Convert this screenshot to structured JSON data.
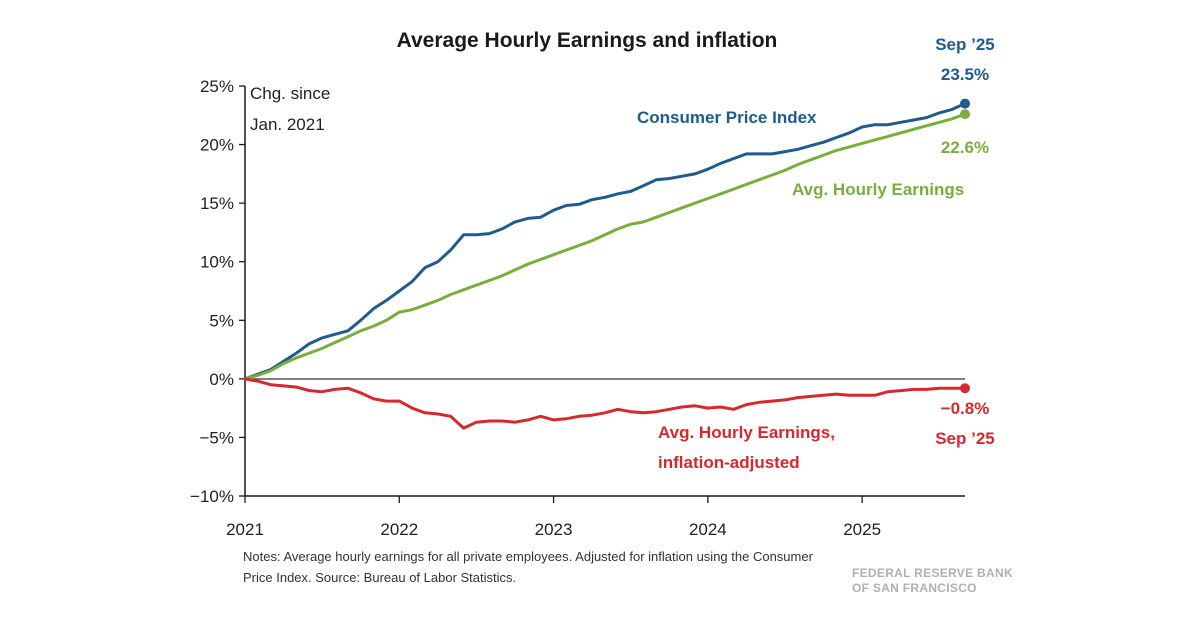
{
  "chart_data": {
    "type": "line",
    "title": "Average Hourly Earnings and inflation",
    "ylabel": "Chg. since Jan. 2021",
    "ylabel_lines": [
      "Chg. since",
      "Jan. 2021"
    ],
    "ylim": [
      -10,
      25
    ],
    "yticks": [
      {
        "value": 25,
        "label": "25%"
      },
      {
        "value": 20,
        "label": "20%"
      },
      {
        "value": 15,
        "label": "15%"
      },
      {
        "value": 10,
        "label": "10%"
      },
      {
        "value": 5,
        "label": "5%"
      },
      {
        "value": 0,
        "label": "0%"
      },
      {
        "value": -5,
        "label": "−5%"
      },
      {
        "value": -10,
        "label": "−10%"
      }
    ],
    "xlim": [
      2021.0,
      2025.6667
    ],
    "xticks": [
      {
        "value": 2021,
        "label": "2021"
      },
      {
        "value": 2022,
        "label": "2022"
      },
      {
        "value": 2023,
        "label": "2023"
      },
      {
        "value": 2024,
        "label": "2024"
      },
      {
        "value": 2025,
        "label": "2025"
      }
    ],
    "x_start_year": 2021,
    "x_step_months": 1,
    "series": [
      {
        "key": "cpi",
        "name": "Consumer Price Index",
        "color": "#1f5b8c",
        "values": [
          0,
          0.4,
          0.8,
          1.5,
          2.2,
          3.0,
          3.5,
          3.8,
          4.1,
          5.0,
          6.0,
          6.7,
          7.5,
          8.3,
          9.5,
          10.0,
          11.0,
          12.3,
          12.3,
          12.4,
          12.8,
          13.4,
          13.7,
          13.8,
          14.4,
          14.8,
          14.9,
          15.3,
          15.5,
          15.8,
          16.0,
          16.5,
          17.0,
          17.1,
          17.3,
          17.5,
          17.9,
          18.4,
          18.8,
          19.2,
          19.2,
          19.2,
          19.4,
          19.6,
          19.9,
          20.2,
          20.6,
          21.0,
          21.5,
          21.7,
          21.7,
          21.9,
          22.1,
          22.3,
          22.7,
          23.0,
          23.5
        ]
      },
      {
        "key": "ahe",
        "name": "Avg. Hourly Earnings",
        "color": "#7aae3a",
        "values": [
          0,
          0.3,
          0.7,
          1.3,
          1.8,
          2.2,
          2.6,
          3.1,
          3.6,
          4.1,
          4.5,
          5.0,
          5.7,
          5.9,
          6.3,
          6.7,
          7.2,
          7.6,
          8.0,
          8.4,
          8.8,
          9.3,
          9.8,
          10.2,
          10.6,
          11.0,
          11.4,
          11.8,
          12.3,
          12.8,
          13.2,
          13.4,
          13.8,
          14.2,
          14.6,
          15.0,
          15.4,
          15.8,
          16.2,
          16.6,
          17.0,
          17.4,
          17.8,
          18.3,
          18.7,
          19.1,
          19.5,
          19.8,
          20.1,
          20.4,
          20.7,
          21.0,
          21.3,
          21.6,
          21.9,
          22.2,
          22.6
        ]
      },
      {
        "key": "real",
        "name": "Avg. Hourly Earnings, inflation-adjusted",
        "color": "#d7282f",
        "values": [
          0,
          -0.2,
          -0.5,
          -0.6,
          -0.7,
          -1.0,
          -1.1,
          -0.9,
          -0.8,
          -1.2,
          -1.7,
          -1.9,
          -1.9,
          -2.5,
          -2.9,
          -3.0,
          -3.2,
          -4.2,
          -3.7,
          -3.6,
          -3.6,
          -3.7,
          -3.5,
          -3.2,
          -3.5,
          -3.4,
          -3.2,
          -3.1,
          -2.9,
          -2.6,
          -2.8,
          -2.9,
          -2.8,
          -2.6,
          -2.4,
          -2.3,
          -2.5,
          -2.4,
          -2.6,
          -2.2,
          -2.0,
          -1.9,
          -1.8,
          -1.6,
          -1.5,
          -1.4,
          -1.3,
          -1.4,
          -1.4,
          -1.4,
          -1.1,
          -1.0,
          -0.9,
          -0.9,
          -0.8,
          -0.8,
          -0.8
        ]
      }
    ],
    "annotations": {
      "cpi_label": "Consumer Price Index",
      "ahe_label": "Avg. Hourly Earnings",
      "real_label_lines": [
        "Avg. Hourly Earnings,",
        "inflation-adjusted"
      ],
      "cpi_end_date": "Sep ’25",
      "cpi_end_value": "23.5%",
      "ahe_end_value": "22.6%",
      "real_end_value": "−0.8%",
      "real_end_date": "Sep ’25"
    }
  },
  "notes": "Notes: Average hourly earnings for all private employees. Adjusted for inflation using the Consumer Price Index. Source: Bureau of Labor Statistics.",
  "brand_lines": [
    "FEDERAL RESERVE BANK",
    "OF SAN FRANCISCO"
  ]
}
